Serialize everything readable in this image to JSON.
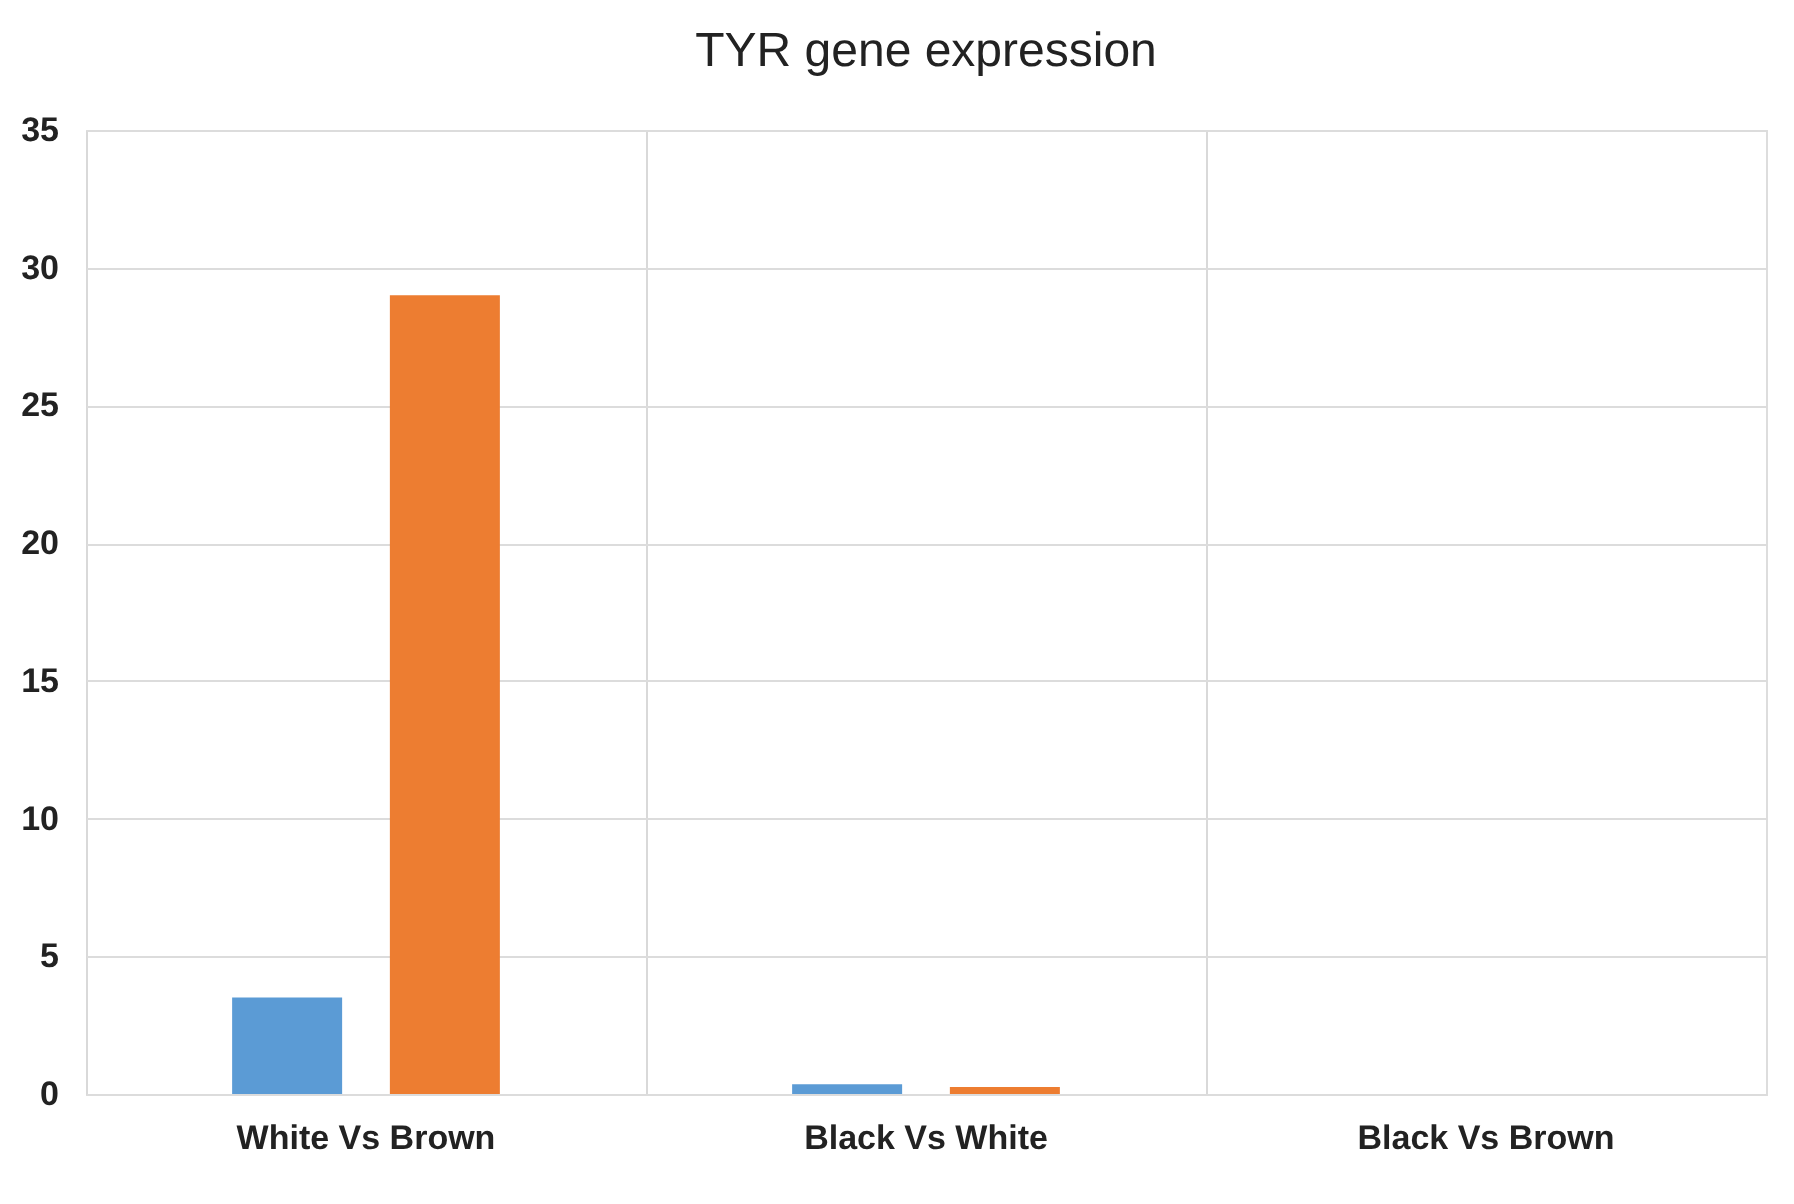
{
  "chart_data": {
    "type": "bar",
    "title": "TYR gene expression",
    "categories": [
      "White Vs Brown",
      "Black Vs White",
      "Black Vs Brown"
    ],
    "series": [
      {
        "color": "#5b9bd5",
        "values": [
          3.5,
          0.35,
          null
        ]
      },
      {
        "color": "#ed7d31",
        "values": [
          29,
          0.25,
          null
        ]
      }
    ],
    "ylim": [
      0,
      35
    ],
    "yticks": [
      0,
      5,
      10,
      15,
      20,
      25,
      30,
      35
    ],
    "grid": true
  }
}
